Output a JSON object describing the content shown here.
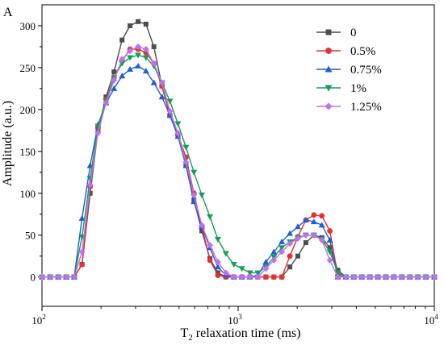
{
  "panel_label": "A",
  "chart_data": {
    "type": "line",
    "xlabel": {
      "prefix": "T",
      "subscript": "2",
      "suffix": " relaxation time (ms)"
    },
    "ylabel": "Amplitude (a.u.)",
    "xscale": "log",
    "xlim": [
      100,
      10000
    ],
    "ylim": [
      -35,
      325
    ],
    "yticks": [
      0,
      50,
      100,
      150,
      200,
      250,
      300
    ],
    "xticks": [
      {
        "value": 100,
        "base": "10",
        "exp": "2"
      },
      {
        "value": 1000,
        "base": "10",
        "exp": "3"
      },
      {
        "value": 10000,
        "base": "10",
        "exp": "4"
      }
    ],
    "grid": false,
    "legend_position": "top-right",
    "series": [
      {
        "name": "0",
        "color": "#4d4d4d",
        "marker": "square",
        "points": [
          [
            100,
            0
          ],
          [
            110,
            0
          ],
          [
            121,
            0
          ],
          [
            133,
            0
          ],
          [
            146,
            0
          ],
          [
            160,
            15
          ],
          [
            176,
            100
          ],
          [
            193,
            175
          ],
          [
            212,
            215
          ],
          [
            233,
            245
          ],
          [
            256,
            283
          ],
          [
            281,
            300
          ],
          [
            309,
            305
          ],
          [
            339,
            302
          ],
          [
            372,
            275
          ],
          [
            409,
            228
          ],
          [
            449,
            193
          ],
          [
            493,
            170
          ],
          [
            542,
            133
          ],
          [
            595,
            92
          ],
          [
            653,
            55
          ],
          [
            718,
            22
          ],
          [
            788,
            5
          ],
          [
            866,
            0
          ],
          [
            951,
            0
          ],
          [
            1045,
            0
          ],
          [
            1148,
            0
          ],
          [
            1260,
            0
          ],
          [
            1385,
            0
          ],
          [
            1521,
            0
          ],
          [
            1670,
            0
          ],
          [
            1835,
            12
          ],
          [
            2015,
            25
          ],
          [
            2214,
            41
          ],
          [
            2432,
            50
          ],
          [
            2671,
            47
          ],
          [
            2934,
            35
          ],
          [
            3223,
            8
          ],
          [
            3541,
            0
          ],
          [
            3889,
            0
          ],
          [
            4272,
            0
          ],
          [
            4693,
            0
          ],
          [
            5155,
            0
          ],
          [
            5662,
            0
          ],
          [
            6220,
            0
          ],
          [
            6832,
            0
          ],
          [
            7505,
            0
          ],
          [
            8244,
            0
          ],
          [
            9056,
            0
          ],
          [
            10000,
            0
          ]
        ]
      },
      {
        "name": "0.5%",
        "color": "#e83030",
        "marker": "circle",
        "points": [
          [
            100,
            0
          ],
          [
            110,
            0
          ],
          [
            121,
            0
          ],
          [
            133,
            0
          ],
          [
            146,
            0
          ],
          [
            160,
            15
          ],
          [
            176,
            108
          ],
          [
            193,
            178
          ],
          [
            212,
            212
          ],
          [
            233,
            238
          ],
          [
            256,
            258
          ],
          [
            281,
            272
          ],
          [
            309,
            272
          ],
          [
            339,
            268
          ],
          [
            372,
            255
          ],
          [
            409,
            228
          ],
          [
            449,
            193
          ],
          [
            493,
            170
          ],
          [
            542,
            143
          ],
          [
            595,
            100
          ],
          [
            653,
            60
          ],
          [
            718,
            20
          ],
          [
            788,
            2
          ],
          [
            866,
            0
          ],
          [
            951,
            0
          ],
          [
            1045,
            0
          ],
          [
            1148,
            0
          ],
          [
            1260,
            0
          ],
          [
            1385,
            0
          ],
          [
            1521,
            0
          ],
          [
            1670,
            0
          ],
          [
            1835,
            25
          ],
          [
            2015,
            48
          ],
          [
            2214,
            68
          ],
          [
            2432,
            74
          ],
          [
            2671,
            73
          ],
          [
            2934,
            55
          ],
          [
            3223,
            2
          ],
          [
            3541,
            0
          ],
          [
            3889,
            0
          ],
          [
            4272,
            0
          ],
          [
            4693,
            0
          ],
          [
            5155,
            0
          ],
          [
            5662,
            0
          ],
          [
            6220,
            0
          ],
          [
            6832,
            0
          ],
          [
            7505,
            0
          ],
          [
            8244,
            0
          ],
          [
            9056,
            0
          ],
          [
            10000,
            0
          ]
        ]
      },
      {
        "name": "0.75%",
        "color": "#1e5fd6",
        "marker": "triangle-up",
        "points": [
          [
            100,
            0
          ],
          [
            110,
            0
          ],
          [
            121,
            0
          ],
          [
            133,
            0
          ],
          [
            146,
            0
          ],
          [
            160,
            70
          ],
          [
            176,
            133
          ],
          [
            193,
            182
          ],
          [
            212,
            208
          ],
          [
            233,
            225
          ],
          [
            256,
            240
          ],
          [
            281,
            248
          ],
          [
            309,
            252
          ],
          [
            339,
            246
          ],
          [
            372,
            232
          ],
          [
            409,
            215
          ],
          [
            449,
            193
          ],
          [
            493,
            168
          ],
          [
            542,
            133
          ],
          [
            595,
            90
          ],
          [
            653,
            60
          ],
          [
            718,
            35
          ],
          [
            788,
            12
          ],
          [
            866,
            2
          ],
          [
            951,
            0
          ],
          [
            1045,
            0
          ],
          [
            1148,
            0
          ],
          [
            1260,
            2
          ],
          [
            1385,
            18
          ],
          [
            1521,
            30
          ],
          [
            1670,
            42
          ],
          [
            1835,
            52
          ],
          [
            2015,
            60
          ],
          [
            2214,
            68
          ],
          [
            2432,
            66
          ],
          [
            2671,
            62
          ],
          [
            2934,
            44
          ],
          [
            3223,
            0
          ],
          [
            3541,
            0
          ],
          [
            3889,
            0
          ],
          [
            4272,
            0
          ],
          [
            4693,
            0
          ],
          [
            5155,
            0
          ],
          [
            5662,
            0
          ],
          [
            6220,
            0
          ],
          [
            6832,
            0
          ],
          [
            7505,
            0
          ],
          [
            8244,
            0
          ],
          [
            9056,
            0
          ],
          [
            10000,
            0
          ]
        ]
      },
      {
        "name": "1%",
        "color": "#149e5a",
        "marker": "triangle-down",
        "points": [
          [
            100,
            0
          ],
          [
            110,
            0
          ],
          [
            121,
            0
          ],
          [
            133,
            0
          ],
          [
            146,
            0
          ],
          [
            160,
            48
          ],
          [
            176,
            118
          ],
          [
            193,
            180
          ],
          [
            212,
            210
          ],
          [
            233,
            238
          ],
          [
            256,
            255
          ],
          [
            281,
            262
          ],
          [
            309,
            265
          ],
          [
            339,
            262
          ],
          [
            372,
            252
          ],
          [
            409,
            232
          ],
          [
            449,
            210
          ],
          [
            493,
            183
          ],
          [
            542,
            155
          ],
          [
            595,
            125
          ],
          [
            653,
            98
          ],
          [
            718,
            72
          ],
          [
            788,
            45
          ],
          [
            866,
            28
          ],
          [
            951,
            15
          ],
          [
            1045,
            10
          ],
          [
            1148,
            5
          ],
          [
            1260,
            5
          ],
          [
            1385,
            12
          ],
          [
            1521,
            24
          ],
          [
            1670,
            35
          ],
          [
            1835,
            42
          ],
          [
            2015,
            47
          ],
          [
            2214,
            50
          ],
          [
            2432,
            50
          ],
          [
            2671,
            45
          ],
          [
            2934,
            30
          ],
          [
            3223,
            5
          ],
          [
            3541,
            0
          ],
          [
            3889,
            0
          ],
          [
            4272,
            0
          ],
          [
            4693,
            0
          ],
          [
            5155,
            0
          ],
          [
            5662,
            0
          ],
          [
            6220,
            0
          ],
          [
            6832,
            0
          ],
          [
            7505,
            0
          ],
          [
            8244,
            0
          ],
          [
            9056,
            0
          ],
          [
            10000,
            0
          ]
        ]
      },
      {
        "name": "1.25%",
        "color": "#c070f0",
        "marker": "diamond",
        "points": [
          [
            100,
            0
          ],
          [
            110,
            0
          ],
          [
            121,
            0
          ],
          [
            133,
            0
          ],
          [
            146,
            0
          ],
          [
            160,
            30
          ],
          [
            176,
            110
          ],
          [
            193,
            172
          ],
          [
            212,
            208
          ],
          [
            233,
            235
          ],
          [
            256,
            260
          ],
          [
            281,
            270
          ],
          [
            309,
            275
          ],
          [
            339,
            272
          ],
          [
            372,
            255
          ],
          [
            409,
            232
          ],
          [
            449,
            198
          ],
          [
            493,
            172
          ],
          [
            542,
            137
          ],
          [
            595,
            98
          ],
          [
            653,
            62
          ],
          [
            718,
            38
          ],
          [
            788,
            18
          ],
          [
            866,
            5
          ],
          [
            951,
            0
          ],
          [
            1045,
            0
          ],
          [
            1148,
            0
          ],
          [
            1260,
            0
          ],
          [
            1385,
            10
          ],
          [
            1521,
            20
          ],
          [
            1670,
            30
          ],
          [
            1835,
            40
          ],
          [
            2015,
            46
          ],
          [
            2214,
            50
          ],
          [
            2432,
            50
          ],
          [
            2671,
            44
          ],
          [
            2934,
            20
          ],
          [
            3223,
            0
          ],
          [
            3541,
            0
          ],
          [
            3889,
            0
          ],
          [
            4272,
            0
          ],
          [
            4693,
            0
          ],
          [
            5155,
            0
          ],
          [
            5662,
            0
          ],
          [
            6220,
            0
          ],
          [
            6832,
            0
          ],
          [
            7505,
            0
          ],
          [
            8244,
            0
          ],
          [
            9056,
            0
          ],
          [
            10000,
            0
          ]
        ]
      }
    ]
  }
}
